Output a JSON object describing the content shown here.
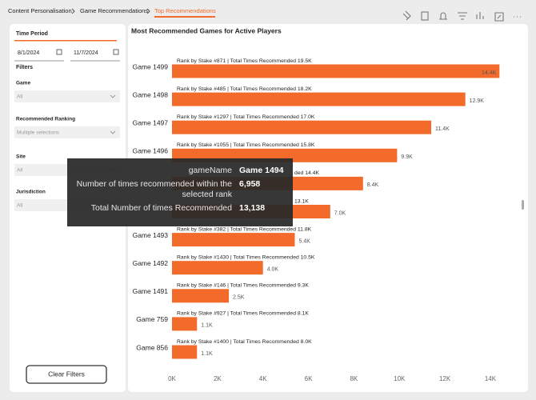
{
  "breadcrumb": [
    "Content Personalisation",
    "Game Recommendations",
    "Top Recommendations"
  ],
  "filter_pane": {
    "time_period": {
      "title": "Time Period",
      "start": "8/1/2024",
      "end": "11/7/2024"
    },
    "filters_title": "Filters",
    "filters": [
      {
        "label": "Game",
        "value": "All"
      },
      {
        "label": "Recommended Ranking",
        "value": "Multiple selections"
      },
      {
        "label": "Site",
        "value": "All"
      },
      {
        "label": "Jurisdiction",
        "value": "All"
      }
    ],
    "clear_button": "Clear Filters"
  },
  "chart_data": {
    "type": "bar",
    "orientation": "horizontal",
    "title": "Most Recommended Games for Active Players",
    "categories": [
      "Game 1499",
      "Game 1498",
      "Game 1497",
      "Game 1496",
      null,
      null,
      "Game 1493",
      "Game 1492",
      "Game 1491",
      "Game 759",
      "Game 856"
    ],
    "values": [
      14400,
      12900,
      11400,
      9900,
      8400,
      6958,
      5400,
      4000,
      2500,
      1100,
      1100
    ],
    "value_labels": [
      "14.4K",
      "12.9K",
      "11.4K",
      "9.9K",
      "8.4K",
      "7.0K",
      "5.4K",
      "4.0K",
      "2.5K",
      "1.1K",
      "1.1K"
    ],
    "annotations": [
      "Rank by Stake #871 | Total Times Recommended 19.5K",
      "Rank by Stake #485 | Total Times Recommended 18.2K",
      "Rank by Stake #1297 | Total Times Recommended 17.0K",
      "Rank by Stake #1055 | Total Times Recommended 15.8K",
      "ded 14.4K",
      "13.1K",
      "Rank by Stake #382 | Total Times Recommended 11.8K",
      "Rank by Stake #1430 | Total Times Recommended 10.5K",
      "Rank by Stake #146 | Total Times Recommended 9.3K",
      "Rank by Stake #927 | Total Times Recommended 8.1K",
      "Rank by Stake #1400 | Total Times Recommended 8.0K"
    ],
    "color": "#f26b2a",
    "grid": false,
    "xlim": [
      0,
      14600
    ],
    "xticks": [
      {
        "value": 0,
        "label": "0K"
      },
      {
        "value": 2000,
        "label": "2K"
      },
      {
        "value": 4000,
        "label": "4K"
      },
      {
        "value": 6000,
        "label": "6K"
      },
      {
        "value": 8000,
        "label": "8K"
      },
      {
        "value": 10000,
        "label": "10K"
      },
      {
        "value": 12000,
        "label": "12K"
      },
      {
        "value": 14000,
        "label": "14K"
      }
    ]
  },
  "tooltip": {
    "rows": [
      {
        "label": "gameName",
        "value": "Game 1494"
      },
      {
        "label": "Number of times recommended within the selected rank",
        "value": "6,958"
      },
      {
        "label": "Total Number of times Recommended",
        "value": "13,138"
      }
    ]
  }
}
